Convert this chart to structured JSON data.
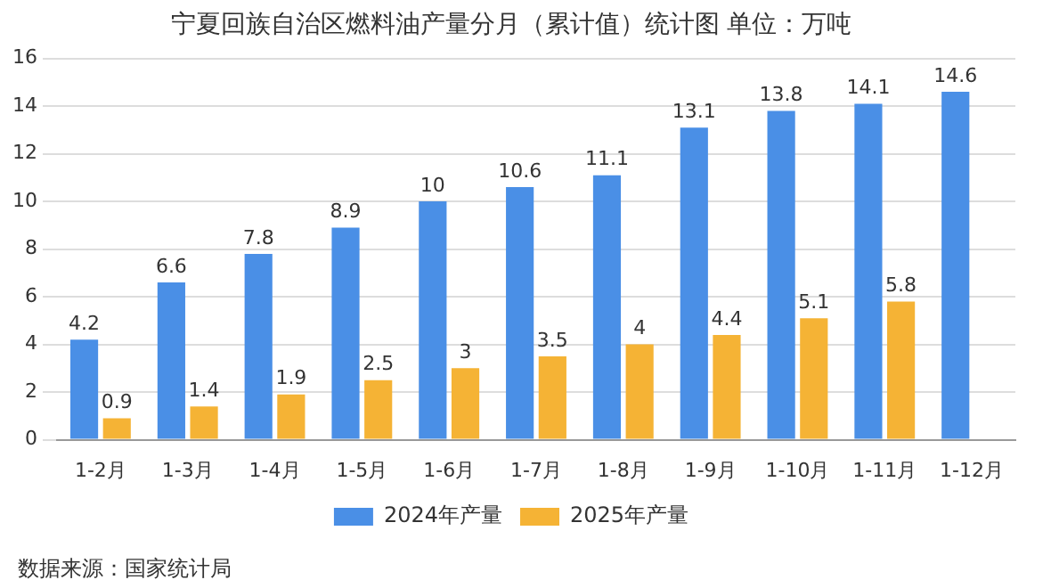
{
  "chart_data": {
    "type": "bar",
    "title": "宁夏回族自治区燃料油产量分月（累计值）统计图 单位：万吨",
    "categories": [
      "1-2月",
      "1-3月",
      "1-4月",
      "1-5月",
      "1-6月",
      "1-7月",
      "1-8月",
      "1-9月",
      "1-10月",
      "1-11月",
      "1-12月"
    ],
    "series": [
      {
        "name": "2024年产量",
        "color": "#4a8fe6",
        "values": [
          4.2,
          6.6,
          7.8,
          8.9,
          10,
          10.6,
          11.1,
          13.1,
          13.8,
          14.1,
          14.6
        ]
      },
      {
        "name": "2025年产量",
        "color": "#f5b335",
        "values": [
          0.9,
          1.4,
          1.9,
          2.5,
          3,
          3.5,
          4,
          4.4,
          5.1,
          5.8,
          null
        ]
      }
    ],
    "ylim": [
      0,
      16
    ],
    "yticks": [
      0,
      2,
      4,
      6,
      8,
      10,
      12,
      14,
      16
    ],
    "grid": "y",
    "legend": "bottom",
    "data_labels": true,
    "annotations": [
      "数据来源：国家统计局"
    ]
  }
}
